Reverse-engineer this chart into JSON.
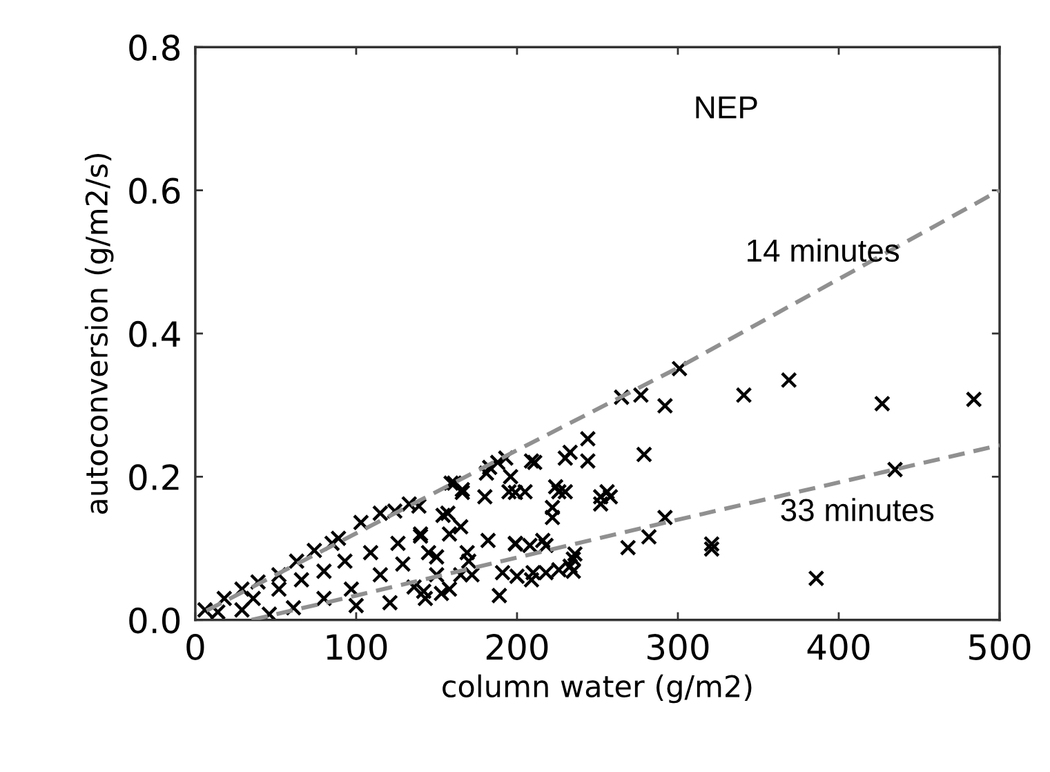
{
  "chart_data": {
    "type": "scatter",
    "xlabel": "column water (g/m2)",
    "ylabel": "autoconversion (g/m2/s)",
    "xlim": [
      0,
      500
    ],
    "xticks": [
      0,
      100,
      200,
      300,
      400,
      500
    ],
    "ylim": [
      0,
      0.8
    ],
    "yticks": [
      {
        "value": 0,
        "label": "0.0"
      },
      0.2,
      0.4,
      0.6,
      0.8
    ],
    "grid": false,
    "legend": false,
    "marker": "cross",
    "series": [
      {
        "color": "#000000",
        "x": [
          265,
          277,
          292,
          301,
          341,
          369,
          427,
          484,
          279,
          435,
          292,
          282,
          269,
          321,
          321,
          386,
          258,
          252,
          256,
          244,
          244,
          233,
          230,
          224,
          230,
          209,
          211,
          196,
          205,
          195,
          222,
          222,
          218,
          208,
          199,
          235,
          235,
          226,
          218,
          209,
          200,
          181,
          188,
          193,
          183,
          161,
          166,
          180,
          199,
          226,
          252,
          157,
          165,
          182,
          199,
          216,
          139,
          140,
          150,
          170,
          191,
          210,
          233,
          236,
          189,
          153,
          142,
          172,
          159,
          166,
          133,
          115,
          89,
          74,
          63,
          39,
          18,
          6,
          140,
          154,
          158,
          145,
          126,
          109,
          93,
          80,
          66,
          52,
          36,
          29,
          14,
          115,
          97,
          80,
          61,
          129,
          136,
          150,
          158,
          143,
          121,
          100,
          46,
          169,
          165,
          124,
          103,
          85,
          52,
          29
        ],
        "values": [
          0.311,
          0.314,
          0.299,
          0.351,
          0.314,
          0.335,
          0.302,
          0.308,
          0.231,
          0.21,
          0.143,
          0.116,
          0.101,
          0.106,
          0.099,
          0.058,
          0.172,
          0.162,
          0.179,
          0.253,
          0.222,
          0.234,
          0.226,
          0.186,
          0.179,
          0.222,
          0.22,
          0.2,
          0.179,
          0.179,
          0.157,
          0.143,
          0.104,
          0.104,
          0.106,
          0.085,
          0.068,
          0.07,
          0.066,
          0.056,
          0.061,
          0.205,
          0.22,
          0.226,
          0.213,
          0.191,
          0.178,
          0.172,
          0.178,
          0.179,
          0.172,
          0.149,
          0.13,
          0.111,
          0.107,
          0.111,
          0.159,
          0.117,
          0.088,
          0.082,
          0.066,
          0.066,
          0.075,
          0.092,
          0.034,
          0.037,
          0.04,
          0.063,
          0.191,
          0.182,
          0.162,
          0.149,
          0.114,
          0.097,
          0.082,
          0.053,
          0.03,
          0.014,
          0.12,
          0.146,
          0.12,
          0.094,
          0.107,
          0.094,
          0.082,
          0.068,
          0.056,
          0.043,
          0.03,
          0.014,
          0.011,
          0.063,
          0.043,
          0.03,
          0.017,
          0.078,
          0.046,
          0.063,
          0.043,
          0.03,
          0.024,
          0.02,
          0.008,
          0.094,
          0.063,
          0.152,
          0.136,
          0.107,
          0.063,
          0.043
        ]
      },
      {
        "type": "line",
        "color": "#909090",
        "line_style": "dashed",
        "marker": "none",
        "x": [
          7,
          200,
          300,
          500
        ],
        "values": [
          0.013,
          0.237,
          0.352,
          0.6
        ]
      },
      {
        "type": "line",
        "color": "#909090",
        "line_style": "dashed",
        "marker": "none",
        "x": [
          35,
          100,
          200,
          300,
          400,
          500
        ],
        "values": [
          0,
          0.034,
          0.087,
          0.14,
          0.192,
          0.244
        ]
      }
    ],
    "annotations": [
      "NEP",
      "14 minutes",
      "33 minutes"
    ]
  }
}
